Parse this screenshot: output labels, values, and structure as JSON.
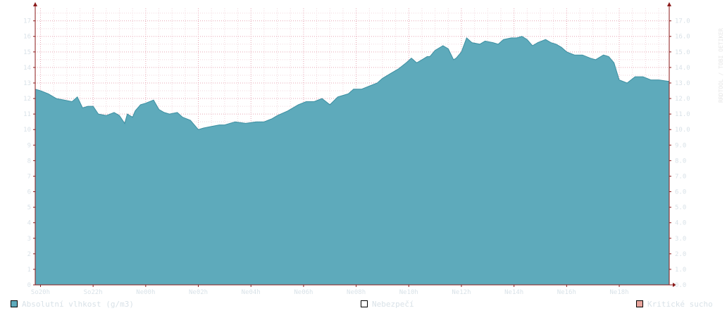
{
  "colors": {
    "area": "#5eaabb",
    "area_edge": "#3d8fa1",
    "grid_minor": "#f2d7dd",
    "grid_major": "#e7a7b5",
    "axis": "#8b1a1a",
    "tick_text": "#d9e2e8",
    "danger": "#ffffff",
    "critical": "#e8a49c"
  },
  "legend": {
    "items": [
      {
        "label": "Absolutní vlhkost (g/m3)",
        "color": "#5eaabb"
      },
      {
        "label": "Nebezpečí",
        "color": "#ffffff"
      },
      {
        "label": "Kritické sucho",
        "color": "#e8a49c"
      }
    ]
  },
  "watermark": "RRDTOOL / TOBI OETIKER",
  "chart_data": {
    "type": "area",
    "x_tick_labels": [
      "So20h",
      "So22h",
      "Ne00h",
      "Ne02h",
      "Ne04h",
      "Ne06h",
      "Ne08h",
      "Ne10h",
      "Ne12h",
      "Ne14h",
      "Ne16h",
      "Ne18h"
    ],
    "y_left_ticks": [
      "0",
      "1",
      "2",
      "3",
      "4",
      "5",
      "6",
      "7",
      "8",
      "9",
      "10",
      "11",
      "12",
      "13",
      "14",
      "15",
      "16",
      "17"
    ],
    "y_right_ticks": [
      "0.0",
      "1.0",
      "2.0",
      "3.0",
      "4.0",
      "5.0",
      "6.0",
      "7.0",
      "8.0",
      "9.0",
      "10.0",
      "11.0",
      "12.0",
      "13.0",
      "14.0",
      "15.0",
      "16.0",
      "17.0"
    ],
    "xlim_hours": [
      19.8,
      43.9
    ],
    "ylim": [
      0,
      17.8
    ],
    "grid": true,
    "series": [
      {
        "name": "Absolutní vlhkost (g/m3)",
        "x_hours": [
          19.8,
          20.0,
          20.3,
          20.6,
          20.9,
          21.2,
          21.4,
          21.6,
          21.8,
          22.0,
          22.2,
          22.5,
          22.8,
          23.0,
          23.2,
          23.3,
          23.5,
          23.6,
          23.8,
          24.0,
          24.3,
          24.5,
          24.7,
          24.9,
          25.2,
          25.4,
          25.7,
          26.0,
          26.2,
          26.5,
          26.8,
          27.0,
          27.4,
          27.8,
          28.2,
          28.5,
          28.8,
          29.0,
          29.4,
          29.8,
          30.1,
          30.4,
          30.7,
          31.0,
          31.3,
          31.5,
          31.7,
          31.9,
          32.2,
          32.5,
          32.8,
          33.0,
          33.3,
          33.6,
          33.9,
          34.1,
          34.3,
          34.5,
          34.7,
          34.8,
          35.0,
          35.3,
          35.5,
          35.7,
          35.8,
          36.0,
          36.2,
          36.4,
          36.7,
          36.9,
          37.2,
          37.4,
          37.6,
          37.9,
          38.1,
          38.3,
          38.5,
          38.7,
          38.9,
          39.2,
          39.4,
          39.6,
          39.8,
          40.0,
          40.3,
          40.6,
          40.9,
          41.1,
          41.4,
          41.6,
          41.8,
          42.0,
          42.3,
          42.6,
          42.9,
          43.2,
          43.5,
          43.9
        ],
        "values": [
          12.6,
          12.5,
          12.3,
          12.0,
          11.9,
          11.8,
          12.1,
          11.4,
          11.5,
          11.5,
          11.0,
          10.9,
          11.1,
          10.9,
          10.4,
          11.0,
          10.8,
          11.2,
          11.6,
          11.7,
          11.9,
          11.3,
          11.1,
          11.0,
          11.1,
          10.8,
          10.6,
          10.0,
          10.1,
          10.2,
          10.3,
          10.3,
          10.5,
          10.4,
          10.5,
          10.5,
          10.7,
          10.9,
          11.2,
          11.6,
          11.8,
          11.8,
          12.0,
          11.6,
          12.1,
          12.2,
          12.3,
          12.6,
          12.6,
          12.8,
          13.0,
          13.3,
          13.6,
          13.9,
          14.3,
          14.6,
          14.3,
          14.5,
          14.7,
          14.7,
          15.1,
          15.4,
          15.2,
          14.5,
          14.6,
          15.0,
          15.9,
          15.6,
          15.5,
          15.7,
          15.6,
          15.5,
          15.8,
          15.9,
          15.9,
          16.0,
          15.8,
          15.4,
          15.6,
          15.8,
          15.6,
          15.5,
          15.3,
          15.0,
          14.8,
          14.8,
          14.6,
          14.5,
          14.8,
          14.7,
          14.3,
          13.2,
          13.0,
          13.4,
          13.4,
          13.2,
          13.2,
          13.1
        ]
      }
    ]
  }
}
